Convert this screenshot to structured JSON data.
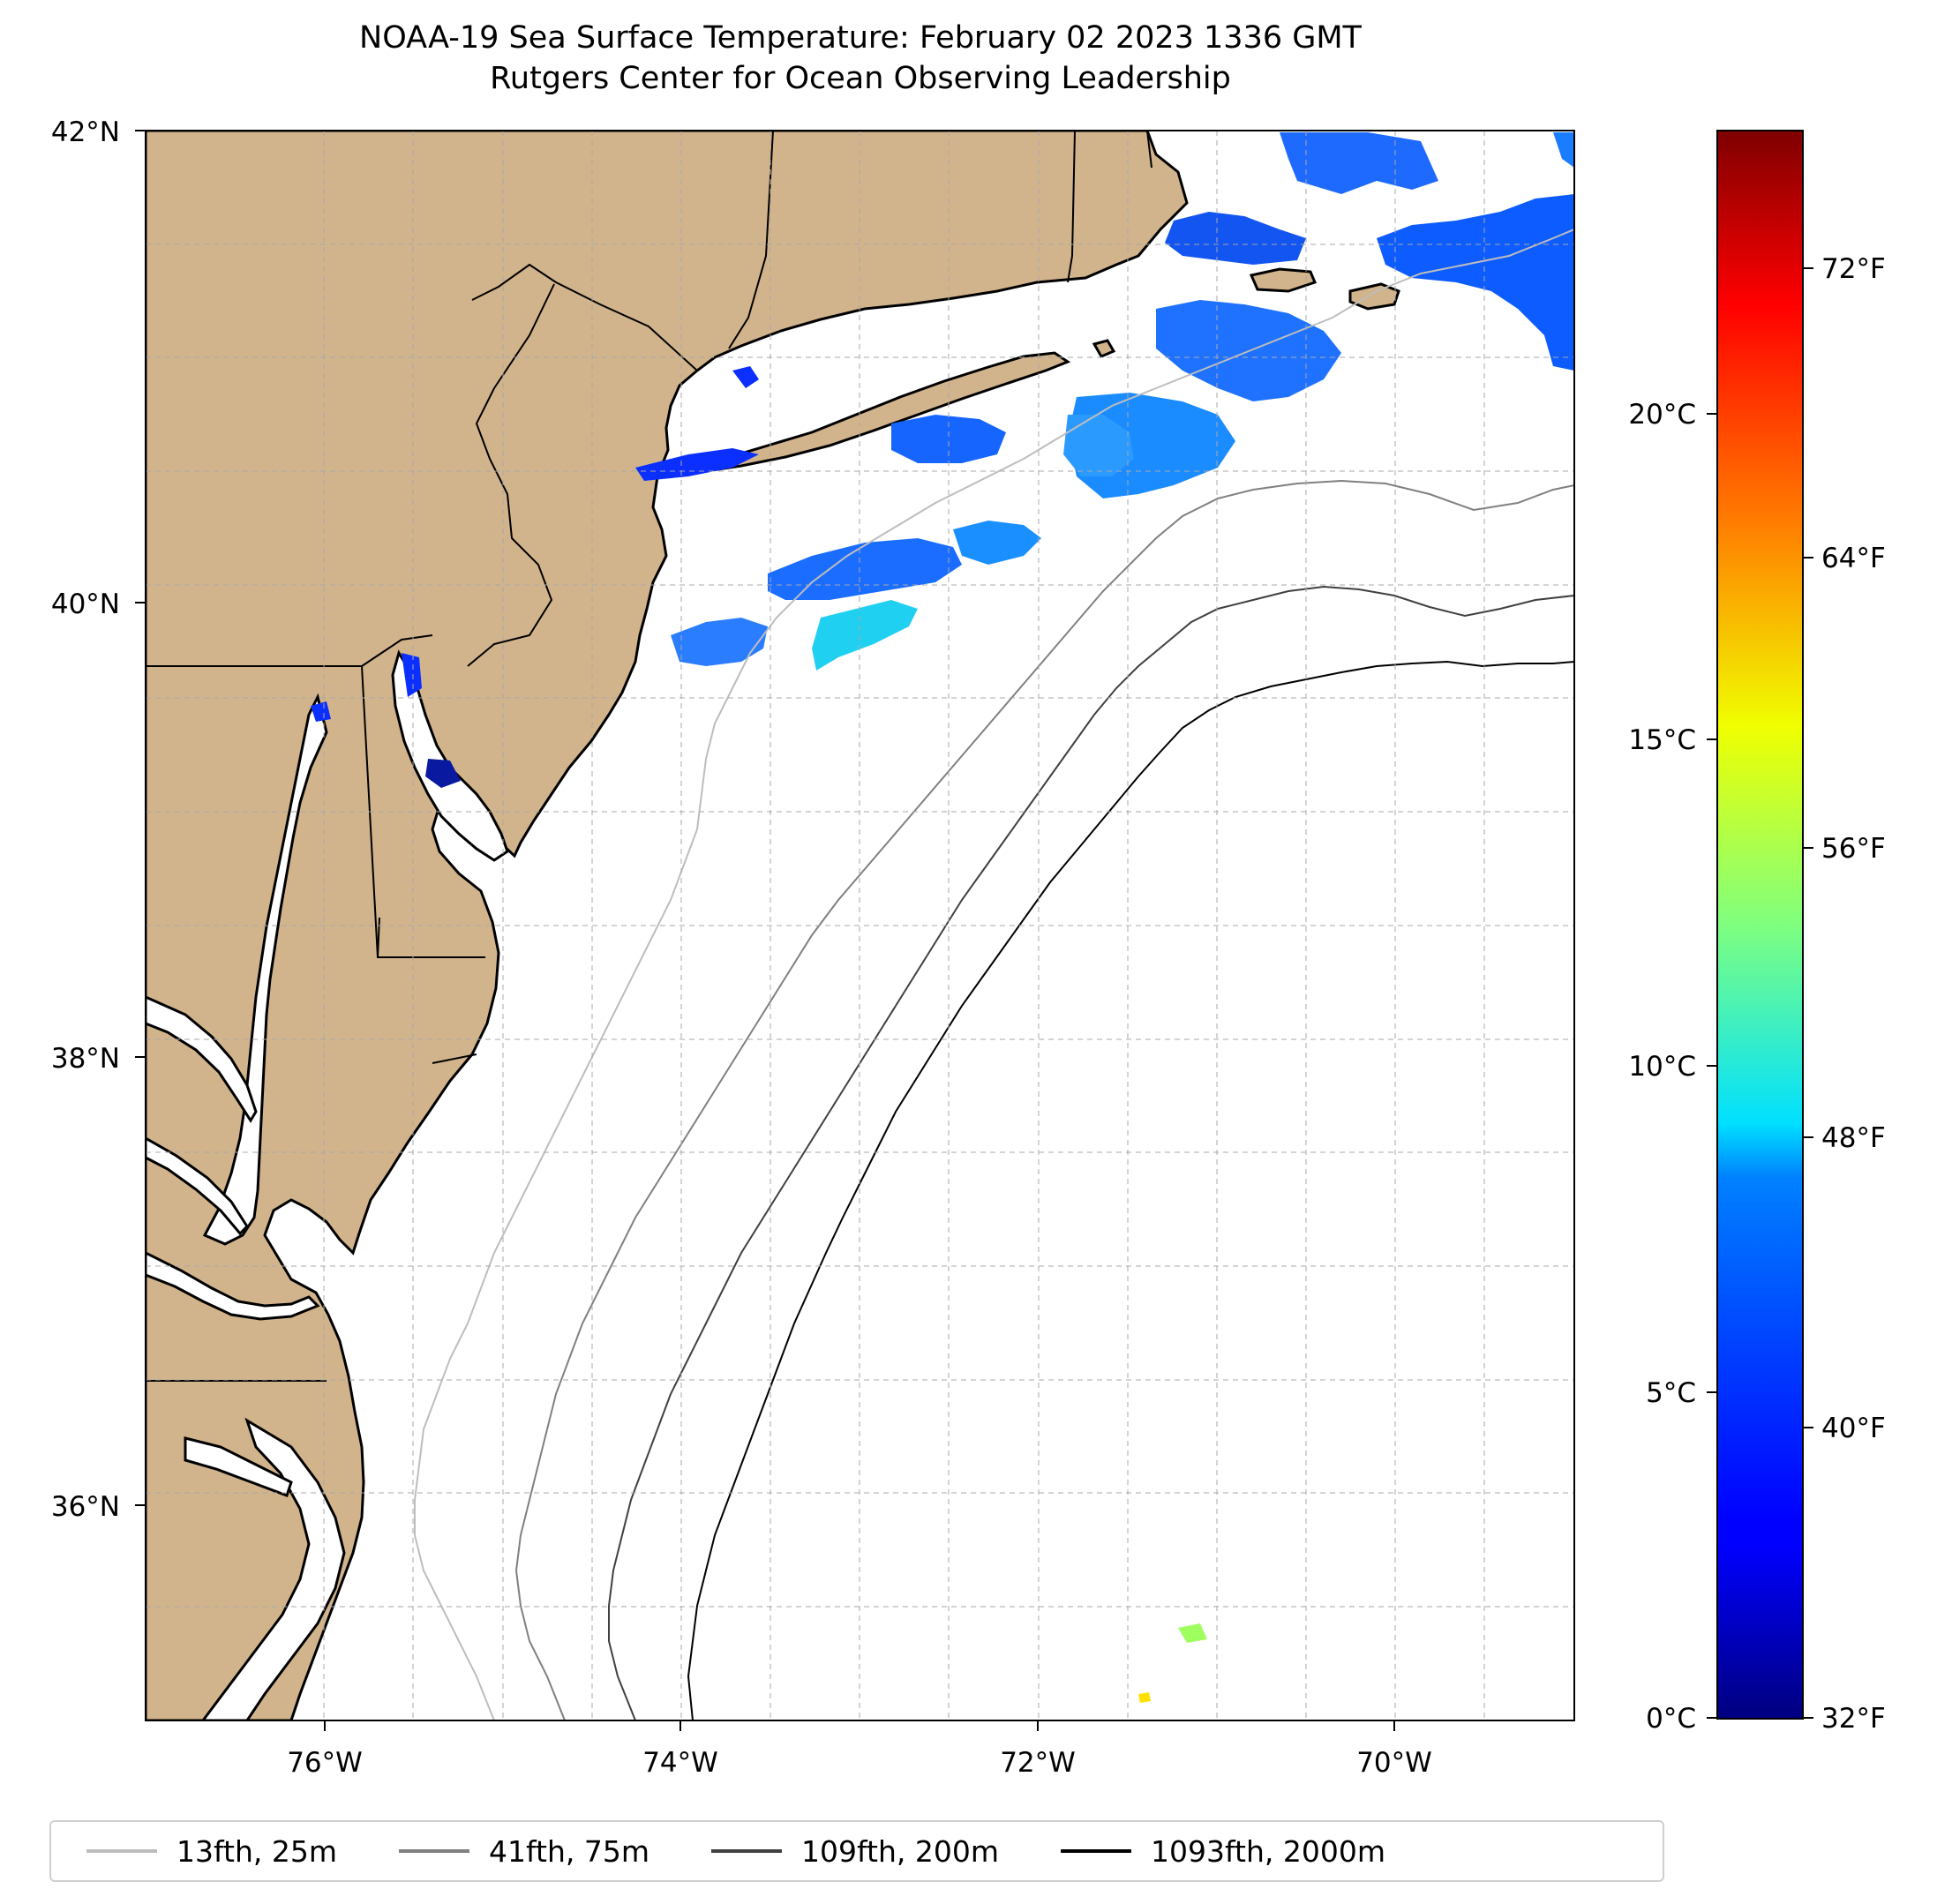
{
  "title": {
    "line1": "NOAA-19 Sea Surface Temperature: February 02 2023 1336 GMT",
    "line2": "Rutgers Center for Ocean Observing Leadership"
  },
  "map": {
    "lon_range": [
      -77,
      -69
    ],
    "lat_range": [
      35,
      42
    ],
    "land_color": "#d2b48c",
    "ocean_color": "#ffffff",
    "lat_ticks": [
      {
        "value": 42,
        "label": "42°N"
      },
      {
        "value": 40,
        "label": "40°N"
      },
      {
        "value": 38,
        "label": "38°N"
      },
      {
        "value": 36,
        "label": "36°N"
      }
    ],
    "lon_ticks": [
      {
        "value": -76,
        "label": "76°W"
      },
      {
        "value": -74,
        "label": "74°W"
      },
      {
        "value": -72,
        "label": "72°W"
      },
      {
        "value": -70,
        "label": "70°W"
      }
    ],
    "gridlines": "dashed"
  },
  "colorbar": {
    "colormap": "jet",
    "celsius_ticks": [
      {
        "value": 0,
        "label": "0°C"
      },
      {
        "value": 5,
        "label": "5°C"
      },
      {
        "value": 10,
        "label": "10°C"
      },
      {
        "value": 15,
        "label": "15°C"
      },
      {
        "value": 20,
        "label": "20°C"
      }
    ],
    "fahrenheit_ticks": [
      {
        "value": 32,
        "label": "32°F"
      },
      {
        "value": 40,
        "label": "40°F"
      },
      {
        "value": 48,
        "label": "48°F"
      },
      {
        "value": 56,
        "label": "56°F"
      },
      {
        "value": 64,
        "label": "64°F"
      },
      {
        "value": 72,
        "label": "72°F"
      }
    ],
    "range_celsius": [
      0,
      24.4
    ]
  },
  "legend": {
    "placement": "bottom",
    "items": [
      {
        "label": "13fth, 25m",
        "color": "#bdbdbd"
      },
      {
        "label": "41fth, 75m",
        "color": "#808080"
      },
      {
        "label": "109fth, 200m",
        "color": "#404040"
      },
      {
        "label": "1093fth, 2000m",
        "color": "#000000"
      }
    ]
  }
}
